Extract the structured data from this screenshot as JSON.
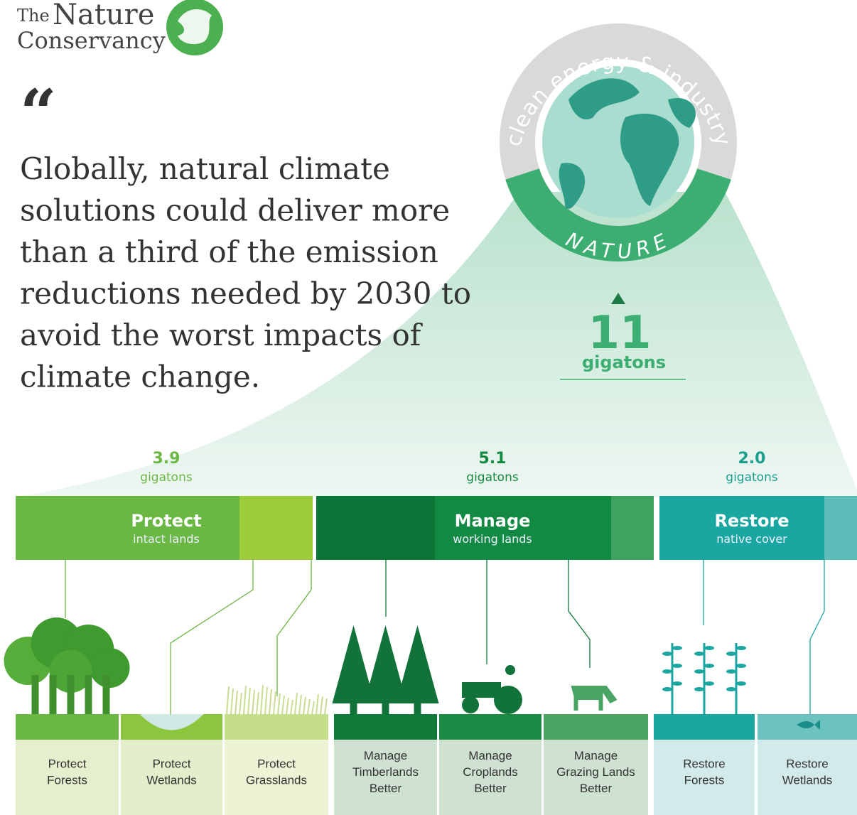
{
  "logo": {
    "line1": "The",
    "line2": "Nature",
    "line3": "Conservancy"
  },
  "quote": {
    "mark": "“",
    "lines": [
      "Globally, natural climate",
      "solutions could deliver more",
      "than a third of the emission",
      "reductions needed by 2030 to",
      "avoid the worst impacts of",
      "climate change."
    ]
  },
  "globe": {
    "ring_top": "clean energy & industry",
    "ring_bottom": "NATURE",
    "total": "11",
    "unit": "gigatons"
  },
  "groups": [
    {
      "value": "3.9",
      "unit": "gigatons",
      "title": "Protect",
      "subtitle": "intact lands",
      "items": [
        [
          "Protect",
          "Forests"
        ],
        [
          "Protect",
          "Wetlands"
        ],
        [
          "Protect",
          "Grasslands"
        ]
      ]
    },
    {
      "value": "5.1",
      "unit": "gigatons",
      "title": "Manage",
      "subtitle": "working lands",
      "items": [
        [
          "Manage",
          "Timberlands",
          "Better"
        ],
        [
          "Manage",
          "Croplands",
          "Better"
        ],
        [
          "Manage",
          "Grazing Lands",
          "Better"
        ]
      ]
    },
    {
      "value": "2.0",
      "unit": "gigatons",
      "title": "Restore",
      "subtitle": "native cover",
      "items": [
        [
          "Restore",
          "Forests"
        ],
        [
          "Restore",
          "Wetlands"
        ]
      ]
    }
  ]
}
